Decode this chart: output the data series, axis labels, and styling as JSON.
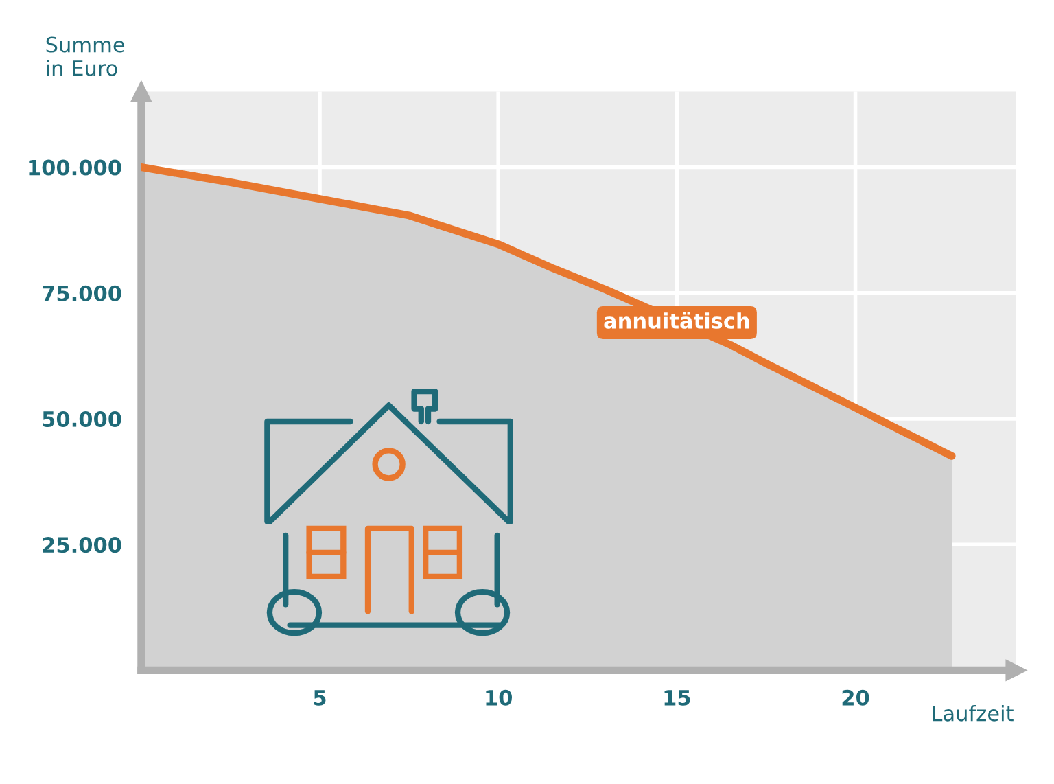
{
  "chart_data": {
    "type": "area",
    "xlabel": "Laufzeit",
    "ylabel": "Summe\nin Euro",
    "x": [
      0,
      2.5,
      5,
      7.5,
      10,
      11.5,
      13,
      16.5,
      17.5,
      20,
      22.7
    ],
    "series": [
      {
        "color": "#e8772e",
        "values": [
          100000,
          97000,
          93700,
          90400,
          84700,
          80000,
          75700,
          64700,
          61000,
          52200,
          42600
        ]
      }
    ],
    "xlim": [
      0,
      24.5
    ],
    "ylim": [
      0,
      115000
    ],
    "xticks": [
      5,
      10,
      15,
      20
    ],
    "yticks": [
      {
        "value": 25000,
        "label": "25.000"
      },
      {
        "value": 50000,
        "label": "50.000"
      },
      {
        "value": 75000,
        "label": "75.000"
      },
      {
        "value": 100000,
        "label": "100.000"
      }
    ],
    "grid": true,
    "annotations": [
      {
        "text": "annuitätisch",
        "x": 15,
        "y": 69100
      }
    ]
  }
}
